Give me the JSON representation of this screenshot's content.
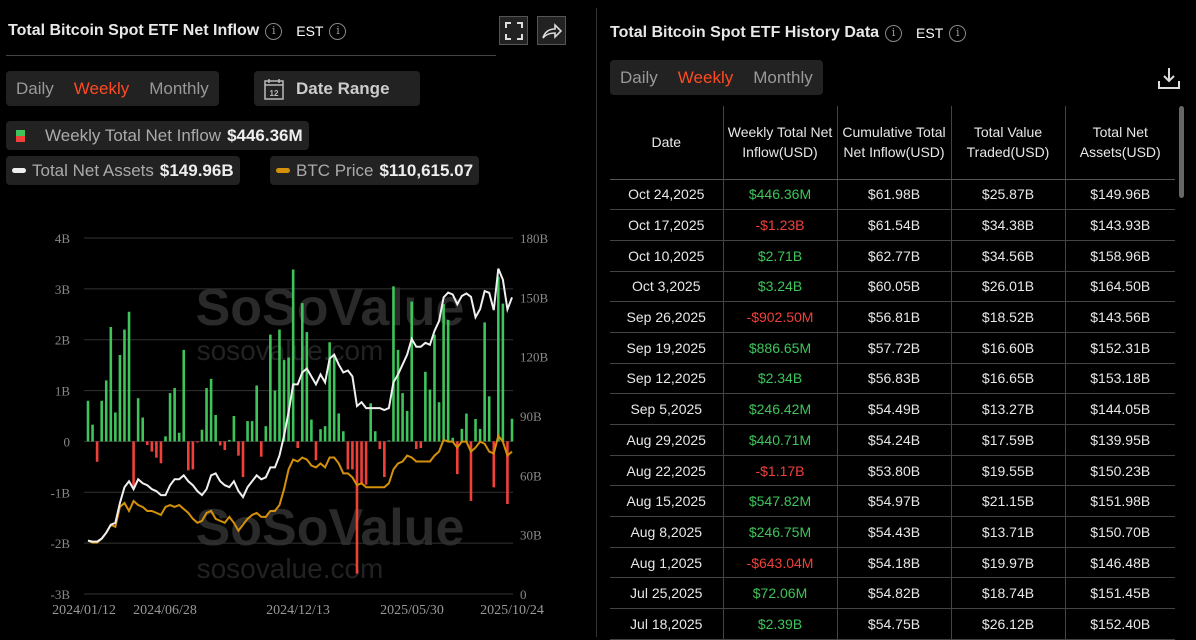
{
  "left": {
    "title": "Total Bitcoin Spot ETF Net Inflow",
    "timezone": "EST",
    "tabs": [
      "Daily",
      "Weekly",
      "Monthly"
    ],
    "active_tab": "Weekly",
    "date_range_label": "Date Range",
    "calendar_day": "12",
    "legend": {
      "inflow": {
        "label": "Weekly Total Net Inflow",
        "value": "$446.36M"
      },
      "assets": {
        "label": "Total Net Assets",
        "value": "$149.96B"
      },
      "btc": {
        "label": "BTC Price",
        "value": "$110,615.07"
      }
    },
    "watermark": "SoSoValue",
    "watermark_url": "sosovalue.com"
  },
  "chart_data": {
    "type": "bar+line",
    "x_start": "2024/01/12",
    "x_end": "2025/10/24",
    "x_interval": "weekly",
    "x_ticks": [
      "2024/01/12",
      "2024/06/28",
      "2024/12/13",
      "2025/05/30",
      "2025/10/24"
    ],
    "y_left_ticks": [
      "4B",
      "3B",
      "2B",
      "1B",
      "0",
      "-1B",
      "-2B",
      "-3B"
    ],
    "ylim_left": [
      -3,
      4
    ],
    "y_right_ticks": [
      "180B",
      "150B",
      "120B",
      "90B",
      "60B",
      "30B",
      "0"
    ],
    "ylim_right": [
      0,
      180
    ],
    "grid": true,
    "colors": {
      "positive": "#3ec45a",
      "negative": "#f0403a",
      "assets": "#f0f0f0",
      "btc": "#d4900a"
    },
    "series": [
      {
        "name": "Weekly Total Net Inflow",
        "unit": "B USD",
        "values": [
          0.8,
          0.33,
          -0.4,
          0.8,
          1.2,
          2.25,
          0.57,
          1.7,
          2.2,
          2.55,
          -0.9,
          0.85,
          0.47,
          -0.07,
          -0.2,
          -0.32,
          -0.43,
          0.1,
          0.95,
          1.05,
          0.17,
          1.8,
          -0.57,
          -0.55,
          -0.02,
          0.23,
          1.05,
          1.23,
          0.52,
          -0.08,
          -0.17,
          0.03,
          0.5,
          -0.28,
          -0.7,
          0.4,
          0.4,
          1.1,
          -0.3,
          0.3,
          2.1,
          1.0,
          2.2,
          1.6,
          1.65,
          3.38,
          -0.13,
          2.72,
          2.15,
          0.43,
          -0.37,
          0.24,
          0.3,
          1.95,
          1.7,
          0.55,
          0.2,
          -0.55,
          -0.55,
          -2.6,
          -0.85,
          -0.85,
          0.75,
          0.2,
          -0.15,
          -0.7,
          0.02,
          3.05,
          1.8,
          0.95,
          0.6,
          2.75,
          -0.15,
          -0.13,
          1.37,
          1.02,
          2.1,
          0.77,
          2.7,
          2.39,
          0.072,
          -0.643,
          0.247,
          0.548,
          -1.17,
          0.441,
          0.246,
          2.34,
          0.887,
          -0.903,
          3.24,
          2.71,
          -1.23,
          0.446
        ]
      },
      {
        "name": "Total Net Assets",
        "unit": "B USD",
        "values": [
          27,
          26.5,
          26.5,
          28,
          31,
          35,
          36,
          46,
          54,
          57,
          53,
          58,
          56,
          55,
          53,
          52,
          50,
          50,
          55,
          58,
          58,
          60,
          57,
          55,
          52,
          50,
          53,
          60,
          61,
          57,
          55,
          54,
          57,
          52,
          49,
          54,
          57,
          60,
          58,
          59,
          64,
          64,
          70,
          80,
          92,
          106,
          106,
          112,
          114,
          110,
          106,
          111,
          107,
          119,
          121,
          116,
          112,
          113,
          110,
          95,
          97,
          94,
          94,
          94,
          94,
          93,
          94,
          107,
          111,
          116,
          121,
          129,
          125,
          125,
          127,
          126,
          133,
          138,
          150,
          152.4,
          151.45,
          146.48,
          150.7,
          151.98,
          150.23,
          139.95,
          144.05,
          153.18,
          152.31,
          143.56,
          164.5,
          158.96,
          143.93,
          149.96
        ]
      },
      {
        "name": "BTC Price",
        "unit": "USD",
        "values": [
          41500,
          39900,
          39900,
          43000,
          47600,
          53800,
          52200,
          67600,
          70700,
          64500,
          72200,
          69100,
          67600,
          64500,
          64500,
          63000,
          61400,
          67600,
          69100,
          67600,
          69100,
          66000,
          63000,
          58400,
          55300,
          56800,
          63000,
          64500,
          58400,
          56800,
          55300,
          59900,
          55300,
          49200,
          53800,
          58400,
          61400,
          63000,
          59900,
          59900,
          64500,
          64500,
          69100,
          81400,
          96800,
          104400,
          102900,
          106000,
          104400,
          99800,
          98300,
          101400,
          98300,
          106000,
          106000,
          101400,
          93700,
          93700,
          90600,
          84500,
          86000,
          82900,
          82900,
          82900,
          82900,
          82900,
          86000,
          96800,
          101400,
          102900,
          107500,
          106000,
          102900,
          102900,
          102900,
          102900,
          107500,
          110600,
          119800,
          118300,
          118300,
          113700,
          118300,
          118300,
          110600,
          113700,
          118300,
          116700,
          110600,
          109100,
          122900,
          118300,
          107500,
          110615.07
        ]
      }
    ]
  },
  "right": {
    "title": "Total Bitcoin Spot ETF History Data",
    "timezone": "EST",
    "tabs": [
      "Daily",
      "Weekly",
      "Monthly"
    ],
    "active_tab": "Weekly",
    "columns": [
      "Date",
      "Weekly Total Net Inflow(USD)",
      "Cumulative Total Net Inflow(USD)",
      "Total Value Traded(USD)",
      "Total Net Assets(USD)"
    ],
    "rows": [
      [
        "Oct 24,2025",
        "$446.36M",
        "$61.98B",
        "$25.87B",
        "$149.96B"
      ],
      [
        "Oct 17,2025",
        "-$1.23B",
        "$61.54B",
        "$34.38B",
        "$143.93B"
      ],
      [
        "Oct 10,2025",
        "$2.71B",
        "$62.77B",
        "$34.56B",
        "$158.96B"
      ],
      [
        "Oct 3,2025",
        "$3.24B",
        "$60.05B",
        "$26.01B",
        "$164.50B"
      ],
      [
        "Sep 26,2025",
        "-$902.50M",
        "$56.81B",
        "$18.52B",
        "$143.56B"
      ],
      [
        "Sep 19,2025",
        "$886.65M",
        "$57.72B",
        "$16.60B",
        "$152.31B"
      ],
      [
        "Sep 12,2025",
        "$2.34B",
        "$56.83B",
        "$16.65B",
        "$153.18B"
      ],
      [
        "Sep 5,2025",
        "$246.42M",
        "$54.49B",
        "$13.27B",
        "$144.05B"
      ],
      [
        "Aug 29,2025",
        "$440.71M",
        "$54.24B",
        "$17.59B",
        "$139.95B"
      ],
      [
        "Aug 22,2025",
        "-$1.17B",
        "$53.80B",
        "$19.55B",
        "$150.23B"
      ],
      [
        "Aug 15,2025",
        "$547.82M",
        "$54.97B",
        "$21.15B",
        "$151.98B"
      ],
      [
        "Aug 8,2025",
        "$246.75M",
        "$54.43B",
        "$13.71B",
        "$150.70B"
      ],
      [
        "Aug 1,2025",
        "-$643.04M",
        "$54.18B",
        "$19.97B",
        "$146.48B"
      ],
      [
        "Jul 25,2025",
        "$72.06M",
        "$54.82B",
        "$18.74B",
        "$151.45B"
      ],
      [
        "Jul 18,2025",
        "$2.39B",
        "$54.75B",
        "$26.12B",
        "$152.40B"
      ]
    ]
  }
}
